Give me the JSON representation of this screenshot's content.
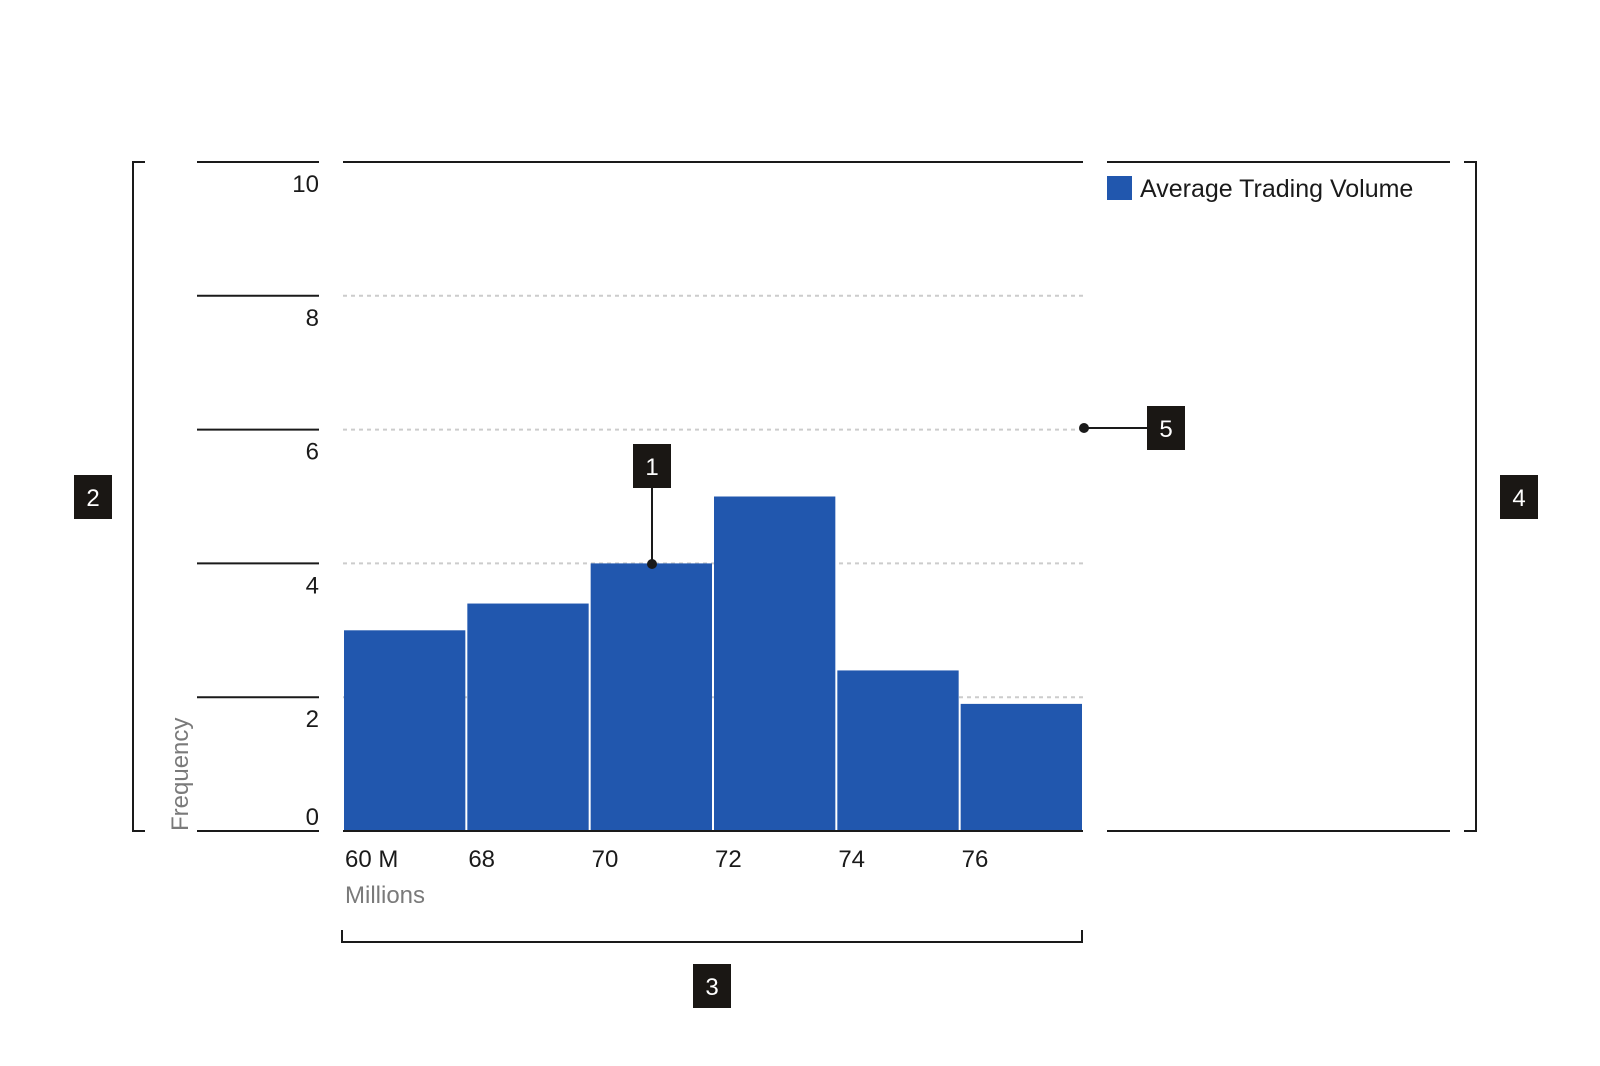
{
  "chart_data": {
    "type": "bar",
    "categories": [
      "60 M",
      "68",
      "70",
      "72",
      "74",
      "76"
    ],
    "values": [
      3,
      3.4,
      4,
      5,
      2.4,
      1.9
    ],
    "series": [
      {
        "name": "Average Trading Volume",
        "values": [
          3,
          3.4,
          4,
          5,
          2.4,
          1.9
        ]
      }
    ],
    "xlabel": "Millions",
    "ylabel": "Frequency",
    "ylim": [
      0,
      10
    ],
    "yticks": [
      0,
      2,
      4,
      6,
      8,
      10
    ],
    "grid": true,
    "legend_position": "top-right"
  },
  "colors": {
    "bar": "#2157ae",
    "axis": "#1a1a1a",
    "grid": "#cccccc",
    "callout_bg": "#1a1714"
  },
  "callouts": [
    "1",
    "2",
    "3",
    "4",
    "5"
  ]
}
